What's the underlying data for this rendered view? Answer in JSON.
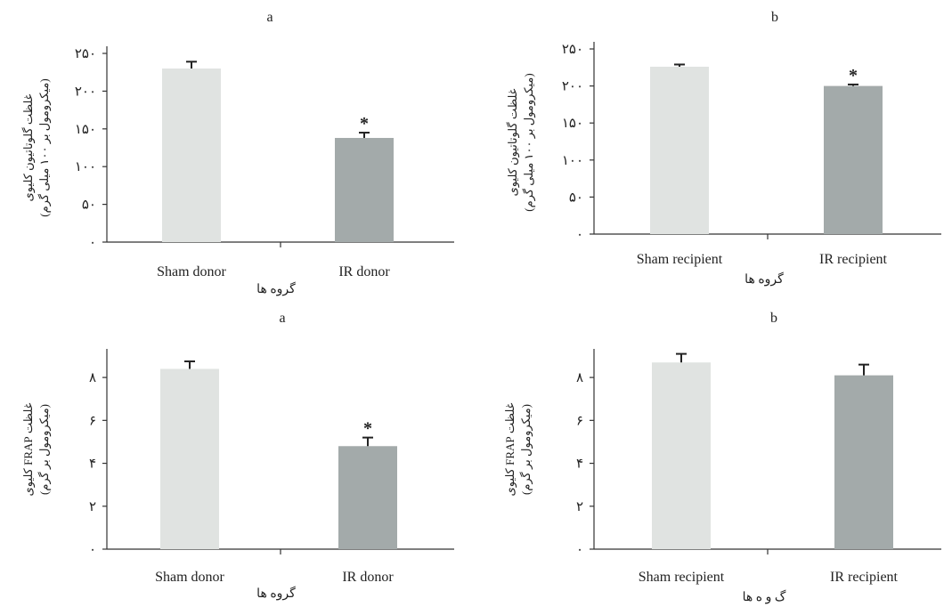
{
  "colors": {
    "sham": "#e0e3e1",
    "ir": "#a3aaaa",
    "axis": "#333333",
    "errbar": "#222222"
  },
  "chart_data": [
    {
      "type": "bar",
      "panel_label": "a",
      "categories": [
        "Sham donor",
        "IR donor"
      ],
      "values": [
        230,
        138
      ],
      "errors": [
        9,
        7
      ],
      "significance": [
        "",
        "*"
      ],
      "ylim": [
        0,
        250
      ],
      "yticks": [
        0,
        50,
        100,
        150,
        200,
        250
      ],
      "ytick_labels": [
        "۰",
        "۵۰",
        "۱۰۰",
        "۱۵۰",
        "۲۰۰",
        "۲۵۰"
      ],
      "ylabel": "غلظت گلوتاتیون کلیوی",
      "ylabel_units": "(میکرومول بر ۱۰۰ میلی گرم)",
      "xlabel": "گروه ها"
    },
    {
      "type": "bar",
      "panel_label": "b",
      "categories": [
        "Sham recipient",
        "IR recipient"
      ],
      "values": [
        226,
        200
      ],
      "errors": [
        3,
        2
      ],
      "significance": [
        "",
        "*"
      ],
      "ylim": [
        0,
        250
      ],
      "yticks": [
        0,
        50,
        100,
        150,
        200,
        250
      ],
      "ytick_labels": [
        "۰",
        "۵۰",
        "۱۰۰",
        "۱۵۰",
        "۲۰۰",
        "۲۵۰"
      ],
      "ylabel": "غلظت گلوتاتیون کلیوی",
      "ylabel_units": "(میکرومول بر ۱۰۰ میلی گرم)",
      "xlabel": "گروه ها"
    },
    {
      "type": "bar",
      "panel_label": "a",
      "categories": [
        "Sham donor",
        "IR donor"
      ],
      "values": [
        8.4,
        4.8
      ],
      "errors": [
        0.35,
        0.4
      ],
      "significance": [
        "",
        "*"
      ],
      "ylim": [
        0,
        9
      ],
      "yticks": [
        0,
        2,
        4,
        6,
        8
      ],
      "ytick_labels": [
        "۰",
        "۲",
        "۴",
        "۶",
        "۸"
      ],
      "ylabel": "غلظت FRAP کلیوی",
      "ylabel_units": "(میکرومول بر گرم)",
      "xlabel": "گروه ها"
    },
    {
      "type": "bar",
      "panel_label": "b",
      "categories": [
        "Sham recipient",
        "IR recipient"
      ],
      "values": [
        8.7,
        8.1
      ],
      "errors": [
        0.4,
        0.5
      ],
      "significance": [
        "",
        ""
      ],
      "ylim": [
        0,
        9
      ],
      "yticks": [
        0,
        2,
        4,
        6,
        8
      ],
      "ytick_labels": [
        "۰",
        "۲",
        "۴",
        "۶",
        "۸"
      ],
      "ylabel": "غلظت FRAP کلیوی",
      "ylabel_units": "(میکرومول بر گرم)",
      "xlabel": "گ و ه ها"
    }
  ]
}
